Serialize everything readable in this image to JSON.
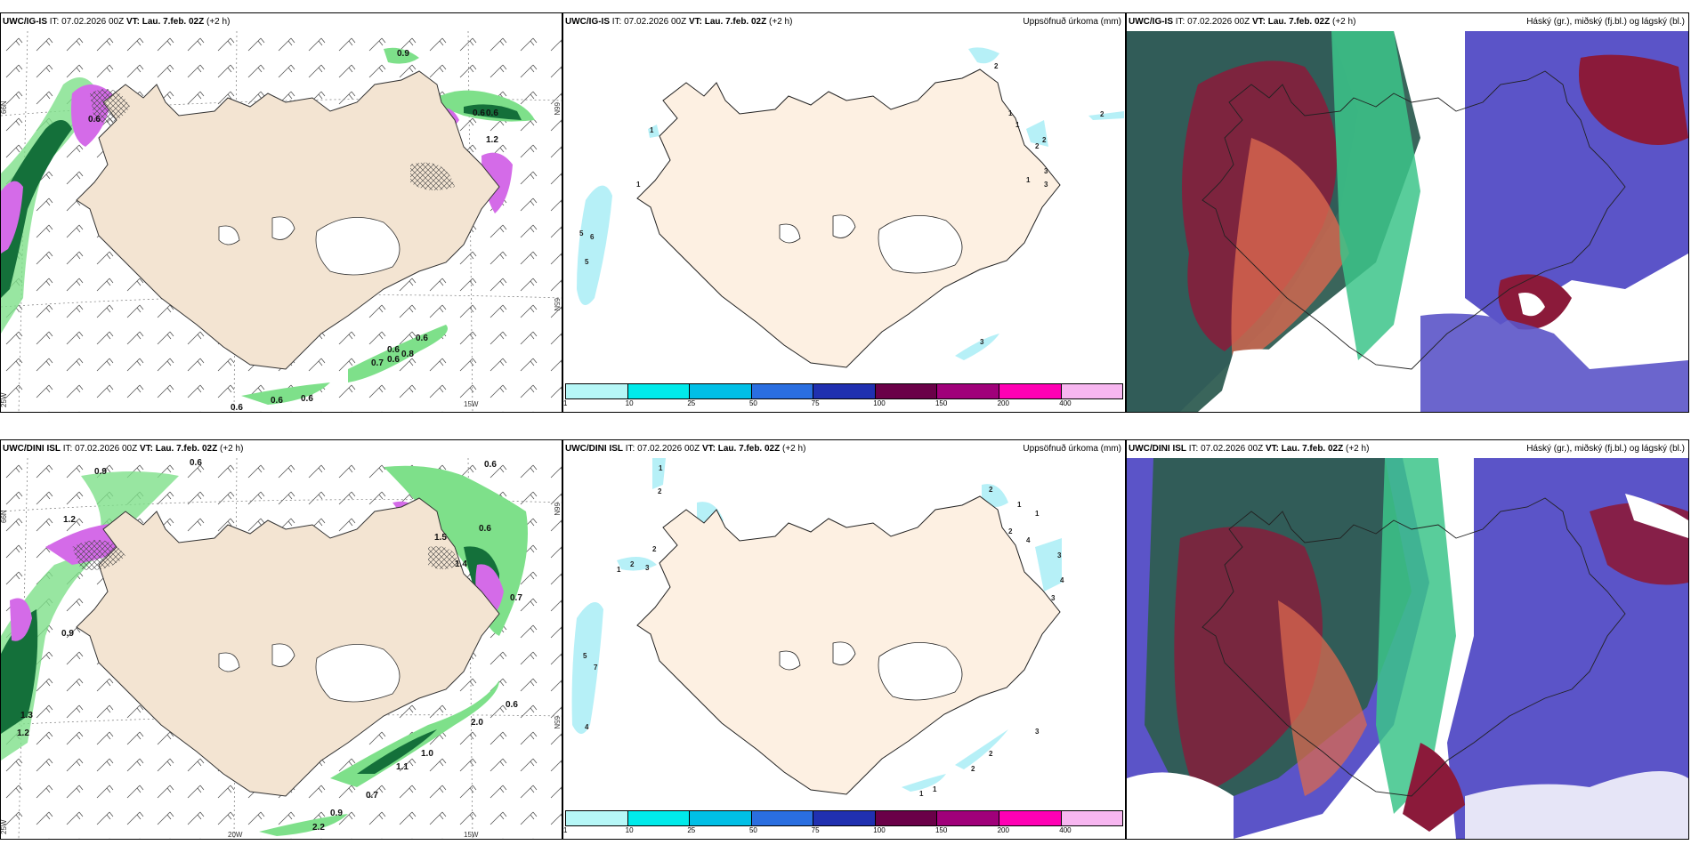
{
  "panels": {
    "p1": {
      "model": "UWC/IG-IS",
      "it_label": "IT:",
      "it": "07.02.2026 00Z",
      "vt_label": "VT:",
      "vt": "Lau. 7.feb. 02Z",
      "lead": "(+2 h)",
      "right_title": ""
    },
    "p2": {
      "model": "UWC/IG-IS",
      "it_label": "IT:",
      "it": "07.02.2026 00Z",
      "vt_label": "VT:",
      "vt": "Lau. 7.feb. 02Z",
      "lead": "(+2 h)",
      "right_title": "Uppsöfnuð úrkoma (mm)"
    },
    "p3": {
      "model": "UWC/IG-IS",
      "it_label": "IT:",
      "it": "07.02.2026 00Z",
      "vt_label": "VT:",
      "vt": "Lau. 7.feb. 02Z",
      "lead": "(+2 h)",
      "right_title": "Háský (gr.), miðský (fj.bl.) og lágský (bl.)"
    },
    "p4": {
      "model": "UWC/DINI ISL",
      "it_label": "IT:",
      "it": "07.02.2026 00Z",
      "vt_label": "VT:",
      "vt": "Lau. 7.feb. 02Z",
      "lead": "(+2 h)",
      "right_title": ""
    },
    "p5": {
      "model": "UWC/DINI ISL",
      "it_label": "IT:",
      "it": "07.02.2026 00Z",
      "vt_label": "VT:",
      "vt": "Lau. 7.feb. 02Z",
      "lead": "(+2 h)",
      "right_title": "Uppsöfnuð úrkoma (mm)"
    },
    "p6": {
      "model": "UWC/DINI ISL",
      "it_label": "IT:",
      "it": "07.02.2026 00Z",
      "vt_label": "VT:",
      "vt": "Lau. 7.feb. 02Z",
      "lead": "(+2 h)",
      "right_title": "Háský (gr.), miðský (fj.bl.) og lágský (bl.)"
    }
  },
  "axes": {
    "lat66": "66N",
    "lat65": "65N",
    "lon25": "25W",
    "lon20": "20W",
    "lon15": "15W"
  },
  "colorbar": {
    "ticks": [
      "1",
      "10",
      "25",
      "50",
      "75",
      "100",
      "150",
      "200",
      "400"
    ],
    "colors": [
      "#b6f7f7",
      "#00eaea",
      "#00bfe6",
      "#2a6ee0",
      "#2030b0",
      "#6a0048",
      "#a0007a",
      "#ff00b4",
      "#f7b6f0"
    ]
  },
  "precip_labels": {
    "p1": [
      "0.9",
      "0.6",
      "0.6",
      "0.6",
      "0.6",
      "0.7",
      "0.6",
      "0.8",
      "0.6",
      "0.6",
      "0.6",
      "0.6",
      "1.2"
    ],
    "p4": [
      "0.9",
      "0.6",
      "0.6",
      "1.2",
      "1.5",
      "1.4",
      "1.3",
      "1.2",
      "0.9",
      "0.6",
      "2.0",
      "1.1",
      "1.0",
      "0.7",
      "0.9",
      "2.2",
      "0.7",
      "0.6"
    ]
  },
  "accum_labels": {
    "p2": [
      "2",
      "2",
      "1",
      "1",
      "2",
      "1",
      "1",
      "3",
      "3",
      "1",
      "5",
      "6",
      "5",
      "3",
      "2"
    ],
    "p5": [
      "1",
      "2",
      "2",
      "2",
      "3",
      "1",
      "5",
      "7",
      "4",
      "2",
      "1",
      "1",
      "2",
      "4",
      "3",
      "3",
      "4",
      "2",
      "3",
      "2",
      "1",
      "1"
    ]
  },
  "colors": {
    "land": "#f3e4d2",
    "land_p2": "#fdf0e2",
    "coast": "#333333",
    "ice": "#ffffff",
    "precip_green": "#7ee08a",
    "precip_dark": "#14703a",
    "precip_magenta": "#d46be8",
    "cloud_high": "#2f5d52",
    "cloud_mid": "#8b1a3a",
    "cloud_low": "#5b54c8",
    "accum_cyan": "#b6f0f7"
  }
}
